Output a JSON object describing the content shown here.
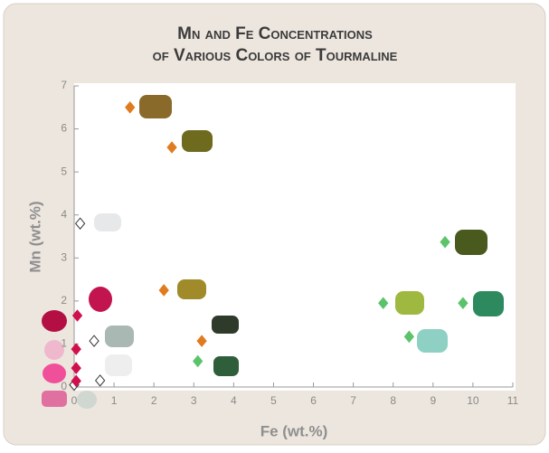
{
  "chart_data": {
    "type": "scatter",
    "title_lines": [
      "Mn and Fe Concentrations",
      "of Various Colors of Tourmaline"
    ],
    "xlabel": "Fe (wt.%)",
    "ylabel": "Mn (wt.%)",
    "xlim": [
      0,
      11
    ],
    "ylim": [
      0,
      7
    ],
    "xticks": [
      0,
      1,
      2,
      3,
      4,
      5,
      6,
      7,
      8,
      9,
      10,
      11
    ],
    "yticks": [
      0,
      1,
      2,
      3,
      4,
      5,
      6,
      7
    ],
    "marker": "diamond",
    "series": [
      {
        "color": "#e07b20",
        "edgecolor": "#e07b20",
        "x": [
          1.4,
          2.45,
          2.25,
          3.2
        ],
        "values": [
          6.5,
          5.57,
          2.25,
          1.07
        ]
      },
      {
        "color": "#5cc36b",
        "edgecolor": "#5cc36b",
        "x": [
          9.3,
          7.75,
          9.75,
          8.4,
          3.1
        ],
        "values": [
          3.37,
          1.95,
          1.95,
          1.17,
          0.6
        ]
      },
      {
        "color": "#ffffff",
        "edgecolor": "#333333",
        "x": [
          0.15,
          0.5,
          0.65,
          0
        ],
        "values": [
          3.8,
          1.07,
          0.15,
          0.05
        ]
      },
      {
        "color": "#d0104c",
        "edgecolor": "#d0104c",
        "x": [
          0.08,
          0.05,
          0.05,
          0.05
        ],
        "values": [
          1.66,
          0.88,
          0.44,
          0.14
        ]
      }
    ]
  }
}
